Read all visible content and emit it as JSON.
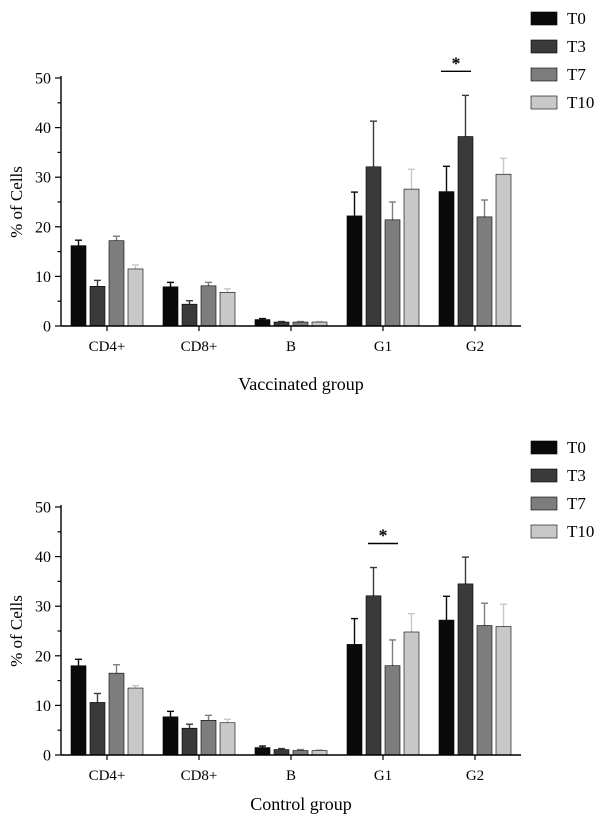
{
  "colors": {
    "T0": "#0a0a0a",
    "T3": "#3a3a3a",
    "T7": "#7d7d7d",
    "T10": "#c8c8c8",
    "axis": "#000000"
  },
  "chart_data": [
    {
      "type": "bar",
      "title": "",
      "xlabel": "Vaccinated group",
      "ylabel": "% of Cells",
      "ylim": [
        0,
        50
      ],
      "yticks": [
        "0",
        "10",
        "20",
        "30",
        "40",
        "50"
      ],
      "legend_position": "top-right",
      "categories": [
        "CD4+",
        "CD8+",
        "B",
        "G1",
        "G2"
      ],
      "series": [
        {
          "name": "T0",
          "values": [
            16.2,
            7.9,
            1.3,
            22.2,
            27.1
          ],
          "errors": [
            1.1,
            0.9,
            0.2,
            4.8,
            5.1
          ]
        },
        {
          "name": "T3",
          "values": [
            8.0,
            4.4,
            0.8,
            32.1,
            38.2
          ],
          "errors": [
            1.2,
            0.7,
            0.1,
            9.2,
            8.3
          ]
        },
        {
          "name": "T7",
          "values": [
            17.2,
            8.1,
            0.8,
            21.4,
            22.0
          ],
          "errors": [
            0.9,
            0.7,
            0.1,
            3.6,
            3.4
          ]
        },
        {
          "name": "T10",
          "values": [
            11.5,
            6.8,
            0.8,
            27.6,
            30.6
          ],
          "errors": [
            0.8,
            0.7,
            0.1,
            4.0,
            3.2
          ]
        }
      ],
      "annotations": [
        {
          "text": "*",
          "category": "G2",
          "from_series": "T0",
          "to_series": "T3"
        }
      ]
    },
    {
      "type": "bar",
      "title": "",
      "xlabel": "Control group",
      "ylabel": "% of Cells",
      "ylim": [
        0,
        50
      ],
      "yticks": [
        "0",
        "10",
        "20",
        "30",
        "40",
        "50"
      ],
      "legend_position": "top-right",
      "categories": [
        "CD4+",
        "CD8+",
        "B",
        "G1",
        "G2"
      ],
      "series": [
        {
          "name": "T0",
          "values": [
            18.0,
            7.7,
            1.5,
            22.3,
            27.2
          ],
          "errors": [
            1.3,
            1.1,
            0.3,
            5.2,
            4.8
          ]
        },
        {
          "name": "T3",
          "values": [
            10.6,
            5.4,
            1.1,
            32.1,
            34.5
          ],
          "errors": [
            1.8,
            0.8,
            0.2,
            5.7,
            5.4
          ]
        },
        {
          "name": "T7",
          "values": [
            16.5,
            7.0,
            0.9,
            18.0,
            26.1
          ],
          "errors": [
            1.7,
            1.0,
            0.2,
            5.2,
            4.5
          ]
        },
        {
          "name": "T10",
          "values": [
            13.5,
            6.5,
            0.9,
            24.8,
            25.9
          ],
          "errors": [
            0.5,
            0.7,
            0.2,
            3.7,
            4.5
          ]
        }
      ],
      "annotations": [
        {
          "text": "*",
          "category": "G1",
          "from_series": "T3",
          "to_series": "T7"
        }
      ]
    }
  ]
}
